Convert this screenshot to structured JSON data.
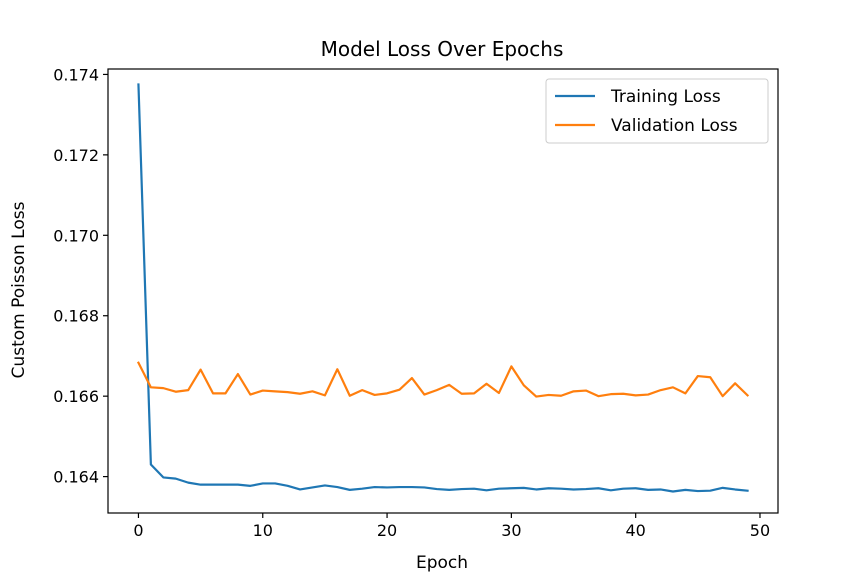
{
  "chart_data": {
    "type": "line",
    "title": "Model Loss Over Epochs",
    "xlabel": "Epoch",
    "ylabel": "Custom Poisson Loss",
    "xlim": [
      -2.45,
      51.45
    ],
    "ylim": [
      0.163095,
      0.174135
    ],
    "xticks": [
      0,
      10,
      20,
      30,
      40,
      50
    ],
    "yticks": [
      0.164,
      0.166,
      0.168,
      0.17,
      0.172,
      0.174
    ],
    "ytick_labels": [
      "0.164",
      "0.166",
      "0.168",
      "0.170",
      "0.172",
      "0.174"
    ],
    "grid": false,
    "legend_position": "top-right",
    "x": [
      0,
      1,
      2,
      3,
      4,
      5,
      6,
      7,
      8,
      9,
      10,
      11,
      12,
      13,
      14,
      15,
      16,
      17,
      18,
      19,
      20,
      21,
      22,
      23,
      24,
      25,
      26,
      27,
      28,
      29,
      30,
      31,
      32,
      33,
      34,
      35,
      36,
      37,
      38,
      39,
      40,
      41,
      42,
      43,
      44,
      45,
      46,
      47,
      48,
      49
    ],
    "series": [
      {
        "name": "Training Loss",
        "color": "#1f77b4",
        "values": [
          0.17375,
          0.1643,
          0.16398,
          0.16395,
          0.16385,
          0.1638,
          0.1638,
          0.1638,
          0.1638,
          0.16377,
          0.16383,
          0.16383,
          0.16377,
          0.16368,
          0.16373,
          0.16378,
          0.16374,
          0.16367,
          0.1637,
          0.16374,
          0.16373,
          0.16374,
          0.16374,
          0.16373,
          0.16369,
          0.16367,
          0.16369,
          0.1637,
          0.16366,
          0.1637,
          0.16371,
          0.16372,
          0.16368,
          0.16371,
          0.1637,
          0.16368,
          0.16369,
          0.16371,
          0.16366,
          0.1637,
          0.16371,
          0.16367,
          0.16368,
          0.16363,
          0.16367,
          0.16364,
          0.16365,
          0.16372,
          0.16368,
          0.16365
        ]
      },
      {
        "name": "Validation Loss",
        "color": "#ff7f0e",
        "values": [
          0.16683,
          0.16622,
          0.1662,
          0.16611,
          0.16615,
          0.16666,
          0.16607,
          0.16607,
          0.16655,
          0.16604,
          0.16614,
          0.16612,
          0.1661,
          0.16606,
          0.16612,
          0.16602,
          0.16667,
          0.16601,
          0.16615,
          0.16603,
          0.16607,
          0.16616,
          0.16645,
          0.16604,
          0.16615,
          0.16628,
          0.16606,
          0.16607,
          0.16631,
          0.16608,
          0.16674,
          0.16627,
          0.16599,
          0.16603,
          0.16601,
          0.16612,
          0.16614,
          0.166,
          0.16605,
          0.16606,
          0.16602,
          0.16604,
          0.16615,
          0.16622,
          0.16607,
          0.1665,
          0.16647,
          0.166,
          0.16632,
          0.16602
        ]
      }
    ]
  }
}
